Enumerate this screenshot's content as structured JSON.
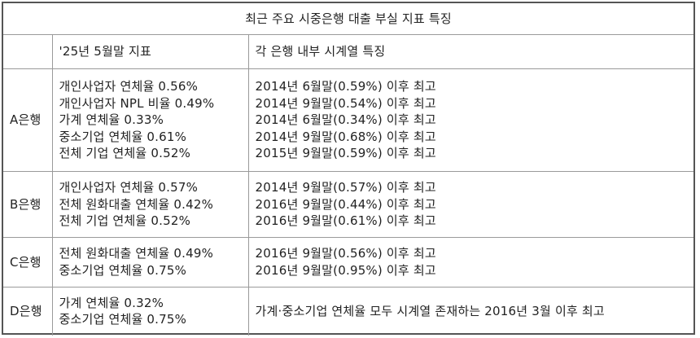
{
  "title": "최근 주요 시중은행 대출 부실 지표 특징",
  "columns": {
    "bank": "",
    "indicator": "'25년 5월말 지표",
    "feature": "각 은행 내부 시계열 특징"
  },
  "rows": [
    {
      "bank": "A은행",
      "indicators": [
        "개인사업자 연체율 0.56%",
        "개인사업자 NPL 비율 0.49%",
        "가계 연체율 0.33%",
        "중소기업 연체율 0.61%",
        "전체 기업 연체율 0.52%"
      ],
      "features": [
        "2014년 6월말(0.59%) 이후 최고",
        "2014년 9월말(0.54%) 이후 최고",
        "2014년 6월말(0.34%) 이후 최고",
        "2014년 9월말(0.68%) 이후 최고",
        "2015년 9월말(0.59%) 이후 최고"
      ]
    },
    {
      "bank": "B은행",
      "indicators": [
        "개인사업자 연체율 0.57%",
        "전체 원화대출 연체율 0.42%",
        "전체 기업 연체율 0.52%"
      ],
      "features": [
        "2014년 9월말(0.57%) 이후 최고",
        "2016년 9월말(0.44%) 이후 최고",
        "2016년 9월말(0.61%) 이후 최고"
      ]
    },
    {
      "bank": "C은행",
      "indicators": [
        "전체 원화대출 연체율 0.49%",
        "중소기업 연체율 0.75%"
      ],
      "features": [
        "2016년 9월말(0.56%) 이후 최고",
        "2016년 9월말(0.95%) 이후 최고"
      ]
    },
    {
      "bank": "D은행",
      "indicators": [
        "가계 연체율 0.32%",
        "중소기업 연체율 0.75%"
      ],
      "features": [
        "가계·중소기업 연체율 모두 시계열 존재하는 2016년 3월 이후 최고"
      ]
    }
  ]
}
